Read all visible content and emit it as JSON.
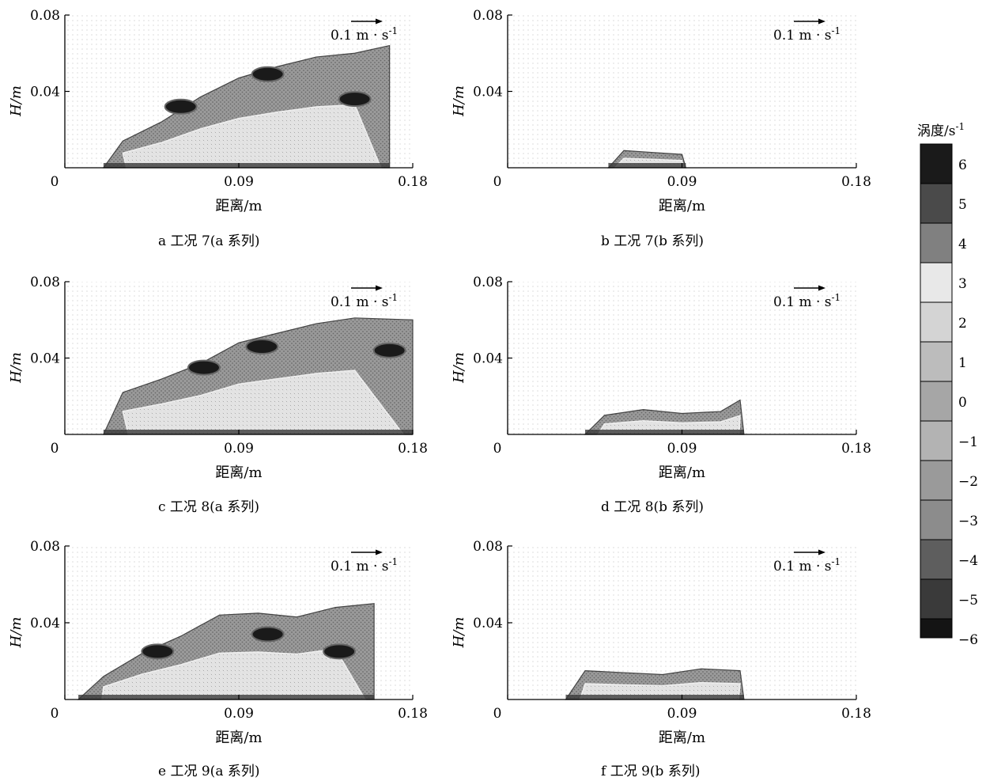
{
  "figure": {
    "panels": [
      {
        "id": "a",
        "caption": "a 工况 7(a 系列)"
      },
      {
        "id": "b",
        "caption": "b 工况 7(b 系列)"
      },
      {
        "id": "c",
        "caption": "c 工况 8(a 系列)"
      },
      {
        "id": "d",
        "caption": "d 工况 8(b 系列)"
      },
      {
        "id": "e",
        "caption": "e 工况 9(a 系列)"
      },
      {
        "id": "f",
        "caption": "f 工况 9(b 系列)"
      }
    ],
    "colorbar": {
      "title": "涡度/s",
      "title_exp": "-1",
      "levels": [
        "6",
        "5",
        "4",
        "3",
        "2",
        "1",
        "0",
        "−1",
        "−2",
        "−3",
        "−4",
        "−5",
        "−6"
      ],
      "colors": [
        "#1a1a1a",
        "#4a4a4a",
        "#808080",
        "#e8e8e8",
        "#d4d4d4",
        "#bcbcbc",
        "#a6a6a6",
        "#b3b3b3",
        "#9a9a9a",
        "#8c8c8c",
        "#5e5e5e",
        "#3a3a3a",
        "#141414"
      ]
    }
  },
  "chart_data": [
    {
      "type": "heatmap",
      "panel": "a",
      "title": "a 工况 7(a 系列)",
      "xlabel": "距离/m",
      "ylabel": "H/m",
      "xlim": [
        0,
        0.18
      ],
      "ylim": [
        0,
        0.08
      ],
      "xticks": [
        "0",
        "0.09",
        "0.18"
      ],
      "yticks": [
        "0.04",
        "0.08"
      ],
      "vector_scale": "0.1 m · s",
      "vector_scale_exp": "-1",
      "region": {
        "x": [
          0.02,
          0.03,
          0.05,
          0.07,
          0.09,
          0.11,
          0.13,
          0.15,
          0.168
        ],
        "top": [
          0.0,
          0.014,
          0.024,
          0.037,
          0.047,
          0.053,
          0.058,
          0.06,
          0.064
        ]
      },
      "vortex_cores": [
        {
          "x": 0.06,
          "y": 0.032
        },
        {
          "x": 0.105,
          "y": 0.049
        },
        {
          "x": 0.15,
          "y": 0.036
        }
      ]
    },
    {
      "type": "heatmap",
      "panel": "b",
      "title": "b 工况 7(b 系列)",
      "xlabel": "距离/m",
      "ylabel": "H/m",
      "xlim": [
        0,
        0.18
      ],
      "ylim": [
        0,
        0.08
      ],
      "xticks": [
        "0",
        "0.09",
        "0.18"
      ],
      "yticks": [
        "0.04",
        "0.08"
      ],
      "vector_scale": "0.1 m · s",
      "vector_scale_exp": "-1",
      "region": {
        "x": [
          0.052,
          0.06,
          0.075,
          0.09,
          0.092
        ],
        "top": [
          0.0,
          0.009,
          0.008,
          0.007,
          0.0
        ]
      },
      "vortex_cores": []
    },
    {
      "type": "heatmap",
      "panel": "c",
      "title": "c 工况 8(a 系列)",
      "xlabel": "距离/m",
      "ylabel": "H/m",
      "xlim": [
        0,
        0.18
      ],
      "ylim": [
        0,
        0.08
      ],
      "xticks": [
        "0",
        "0.09",
        "0.18"
      ],
      "yticks": [
        "0.04",
        "0.08"
      ],
      "vector_scale": "0.1 m · s",
      "vector_scale_exp": "-1",
      "region": {
        "x": [
          0.02,
          0.03,
          0.05,
          0.07,
          0.09,
          0.11,
          0.13,
          0.15,
          0.18
        ],
        "top": [
          0.0,
          0.022,
          0.029,
          0.037,
          0.048,
          0.053,
          0.058,
          0.061,
          0.06
        ]
      },
      "vortex_cores": [
        {
          "x": 0.072,
          "y": 0.035
        },
        {
          "x": 0.102,
          "y": 0.046
        },
        {
          "x": 0.168,
          "y": 0.044
        }
      ]
    },
    {
      "type": "heatmap",
      "panel": "d",
      "title": "d 工况 8(b 系列)",
      "xlabel": "距离/m",
      "ylabel": "H/m",
      "xlim": [
        0,
        0.18
      ],
      "ylim": [
        0,
        0.08
      ],
      "xticks": [
        "0",
        "0.09",
        "0.18"
      ],
      "yticks": [
        "0.04",
        "0.08"
      ],
      "vector_scale": "0.1 m · s",
      "vector_scale_exp": "-1",
      "region": {
        "x": [
          0.04,
          0.05,
          0.07,
          0.09,
          0.11,
          0.12,
          0.122
        ],
        "top": [
          0.0,
          0.01,
          0.013,
          0.011,
          0.012,
          0.018,
          0.0
        ]
      },
      "vortex_cores": []
    },
    {
      "type": "heatmap",
      "panel": "e",
      "title": "e 工况 9(a 系列)",
      "xlabel": "距离/m",
      "ylabel": "H/m",
      "xlim": [
        0,
        0.18
      ],
      "ylim": [
        0,
        0.08
      ],
      "xticks": [
        "0",
        "0.09",
        "0.18"
      ],
      "yticks": [
        "0.04",
        "0.08"
      ],
      "vector_scale": "0.1 m · s",
      "vector_scale_exp": "-1",
      "region": {
        "x": [
          0.007,
          0.02,
          0.04,
          0.06,
          0.08,
          0.1,
          0.12,
          0.14,
          0.16
        ],
        "top": [
          0.0,
          0.012,
          0.024,
          0.033,
          0.044,
          0.045,
          0.043,
          0.048,
          0.05
        ]
      },
      "vortex_cores": [
        {
          "x": 0.048,
          "y": 0.025
        },
        {
          "x": 0.105,
          "y": 0.034
        },
        {
          "x": 0.142,
          "y": 0.025
        }
      ]
    },
    {
      "type": "heatmap",
      "panel": "f",
      "title": "f 工况 9(b 系列)",
      "xlabel": "距离/m",
      "ylabel": "H/m",
      "xlim": [
        0,
        0.18
      ],
      "ylim": [
        0,
        0.08
      ],
      "xticks": [
        "0",
        "0.09",
        "0.18"
      ],
      "yticks": [
        "0.04",
        "0.08"
      ],
      "vector_scale": "0.1 m · s",
      "vector_scale_exp": "-1",
      "region": {
        "x": [
          0.03,
          0.04,
          0.06,
          0.08,
          0.1,
          0.12,
          0.122
        ],
        "top": [
          0.0,
          0.015,
          0.014,
          0.013,
          0.016,
          0.015,
          0.0
        ]
      },
      "vortex_cores": []
    }
  ]
}
